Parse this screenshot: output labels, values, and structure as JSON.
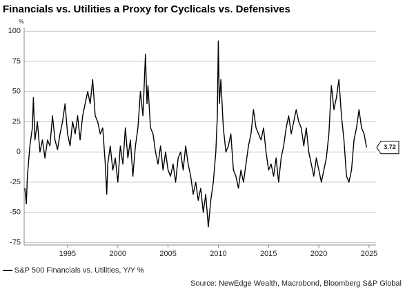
{
  "chart_data": {
    "type": "line",
    "title": "Financials vs. Utilities a Proxy for Cyclicals vs. Defensives",
    "y_unit": "%",
    "source": "Source: NewEdge Wealth, Macrobond, Bloomberg S&P Global",
    "x": [
      1990.75,
      1990.9,
      1991.0,
      1991.25,
      1991.5,
      1991.6,
      1991.75,
      1992.0,
      1992.25,
      1992.5,
      1992.75,
      1993.0,
      1993.25,
      1993.5,
      1993.75,
      1994.0,
      1994.25,
      1994.5,
      1994.75,
      1995.0,
      1995.25,
      1995.5,
      1995.75,
      1996.0,
      1996.25,
      1996.5,
      1996.75,
      1997.0,
      1997.25,
      1997.5,
      1997.75,
      1998.0,
      1998.25,
      1998.5,
      1998.75,
      1998.9,
      1999.0,
      1999.25,
      1999.5,
      1999.75,
      2000.0,
      2000.25,
      2000.5,
      2000.75,
      2001.0,
      2001.25,
      2001.5,
      2001.75,
      2002.0,
      2002.25,
      2002.5,
      2002.75,
      2002.9,
      2003.0,
      2003.25,
      2003.5,
      2003.75,
      2004.0,
      2004.25,
      2004.5,
      2004.75,
      2005.0,
      2005.25,
      2005.5,
      2005.75,
      2006.0,
      2006.25,
      2006.5,
      2006.75,
      2007.0,
      2007.25,
      2007.5,
      2007.75,
      2008.0,
      2008.25,
      2008.5,
      2008.75,
      2009.0,
      2009.25,
      2009.5,
      2009.75,
      2009.9,
      2010.0,
      2010.1,
      2010.25,
      2010.5,
      2010.75,
      2011.0,
      2011.25,
      2011.5,
      2011.75,
      2012.0,
      2012.25,
      2012.5,
      2012.75,
      2013.0,
      2013.25,
      2013.5,
      2013.75,
      2014.0,
      2014.25,
      2014.5,
      2014.75,
      2015.0,
      2015.25,
      2015.5,
      2015.75,
      2016.0,
      2016.25,
      2016.5,
      2016.75,
      2017.0,
      2017.25,
      2017.5,
      2017.75,
      2018.0,
      2018.25,
      2018.5,
      2018.75,
      2019.0,
      2019.25,
      2019.5,
      2019.75,
      2020.0,
      2020.25,
      2020.5,
      2020.75,
      2021.0,
      2021.25,
      2021.5,
      2021.75,
      2022.0,
      2022.25,
      2022.5,
      2022.75,
      2023.0,
      2023.25,
      2023.5,
      2023.75,
      2024.0,
      2024.25,
      2024.5,
      2024.75
    ],
    "series": [
      {
        "name": "S&P 500 Financials vs. Utilities, Y/Y %",
        "color": "#000000",
        "values": [
          -30,
          -43,
          -20,
          5,
          20,
          45,
          10,
          25,
          0,
          10,
          -5,
          10,
          5,
          30,
          10,
          2,
          15,
          25,
          40,
          15,
          5,
          25,
          15,
          30,
          10,
          30,
          40,
          50,
          40,
          60,
          30,
          25,
          15,
          20,
          -10,
          -35,
          -10,
          5,
          -15,
          -5,
          -25,
          5,
          -10,
          20,
          -5,
          10,
          -20,
          5,
          20,
          50,
          30,
          81,
          40,
          55,
          20,
          15,
          0,
          -10,
          5,
          -15,
          0,
          -15,
          -20,
          -10,
          -25,
          -5,
          0,
          -15,
          5,
          -10,
          -20,
          -35,
          -25,
          -40,
          -30,
          -50,
          -35,
          -62,
          -40,
          -25,
          0,
          30,
          92,
          40,
          60,
          20,
          0,
          5,
          15,
          -15,
          -20,
          -30,
          -15,
          -25,
          -10,
          5,
          15,
          35,
          20,
          15,
          10,
          20,
          0,
          -15,
          -10,
          -20,
          -5,
          -25,
          -5,
          5,
          20,
          30,
          15,
          25,
          35,
          25,
          20,
          5,
          20,
          0,
          -10,
          -20,
          -5,
          -15,
          -25,
          -15,
          -5,
          15,
          55,
          35,
          45,
          60,
          30,
          10,
          -20,
          -25,
          -15,
          10,
          20,
          35,
          20,
          15,
          3.72
        ]
      }
    ],
    "xlim": [
      1990.68,
      2025.69
    ],
    "xticks": [
      1995,
      2000,
      2005,
      2010,
      2015,
      2020,
      2025
    ],
    "ylim": [
      -77,
      103
    ],
    "yticks": [
      -75,
      -50,
      -25,
      0,
      25,
      50,
      75,
      100
    ],
    "grid": true
  }
}
